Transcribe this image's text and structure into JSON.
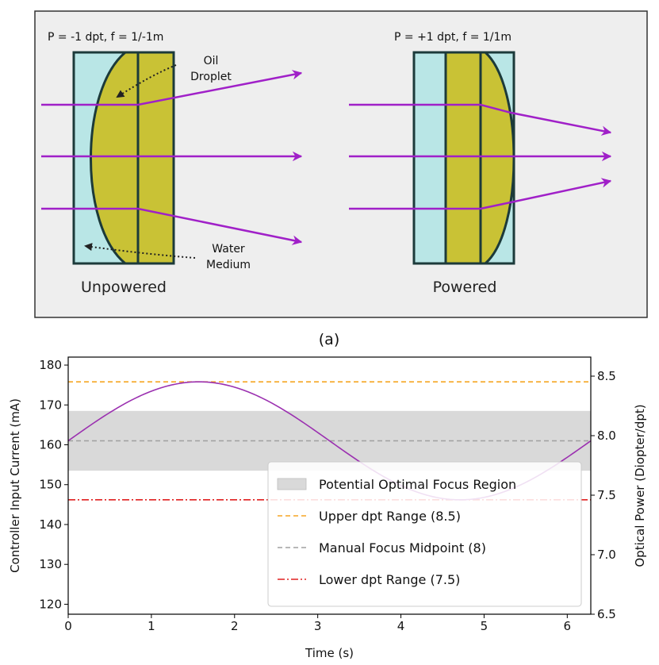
{
  "diagram": {
    "unpowered_label": "Unpowered",
    "powered_label": "Powered",
    "unpowered_power": "P = -1 dpt,  f = 1/-1m",
    "powered_power": "P = +1 dpt, f = 1/1m",
    "oil_label_line1": "Oil",
    "oil_label_line2": "Droplet",
    "water_label_line1": "Water",
    "water_label_line2": "Medium",
    "panel_caption": "(a)",
    "colors": {
      "water": "#b9e6e6",
      "oil": "#c9c235",
      "ray": "#a020c8",
      "outline": "#1c3a3a",
      "panel_bg": "#eeeeee"
    }
  },
  "chart_data": {
    "type": "line",
    "title": "",
    "xlabel": "Time (s)",
    "ylabel": "Controller Input Current (mA)",
    "y2label": "Optical Power (Diopter/dpt)",
    "xlim": [
      0,
      6.283
    ],
    "ylim": [
      117.5,
      182
    ],
    "y2lim": [
      6.5,
      8.66
    ],
    "xticks": [
      "0",
      "1",
      "2",
      "3",
      "4",
      "5",
      "6"
    ],
    "yticks": [
      "120",
      "130",
      "140",
      "150",
      "160",
      "170",
      "180"
    ],
    "y2ticks": [
      "6.5",
      "7.0",
      "7.5",
      "8.0",
      "8.5"
    ],
    "series": [
      {
        "type": "sine",
        "offset": 161,
        "amplitude": 14.8,
        "x_start": 0,
        "x_end": 6.283,
        "color": "#9b30b0"
      }
    ],
    "band": {
      "label": "Potential Optimal Focus Region",
      "y_low": 153.5,
      "y_high": 168.5,
      "color": "#d9d9d9"
    },
    "hlines": [
      {
        "label": "Upper dpt Range (8.5)",
        "y": 175.8,
        "color": "#f5a623",
        "style": "dashed"
      },
      {
        "label": "Manual Focus Midpoint (8)",
        "y": 161,
        "color": "#a0a0a0",
        "style": "dashed"
      },
      {
        "label": "Lower dpt Range (7.5)",
        "y": 146.2,
        "color": "#e02020",
        "style": "dashdot"
      }
    ],
    "legend_position": "lower-right",
    "grid": false
  }
}
